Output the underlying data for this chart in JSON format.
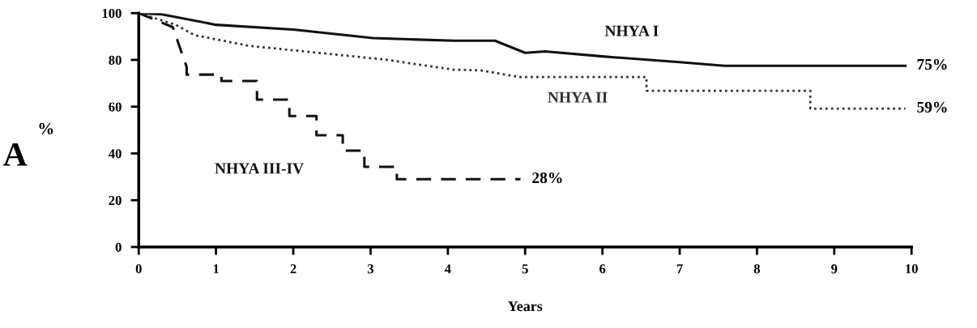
{
  "chart_data": {
    "type": "line",
    "xlabel": "Years",
    "ylabel": "%",
    "xlim": [
      0,
      10
    ],
    "ylim": [
      0,
      100
    ],
    "xticks": [
      0,
      1,
      2,
      3,
      4,
      5,
      6,
      7,
      8,
      9,
      10
    ],
    "yticks": [
      0,
      20,
      40,
      60,
      80,
      100
    ],
    "grid": false,
    "legend": false,
    "marker": "none",
    "series": [
      {
        "name": "NHYA I",
        "color": "#111111",
        "line_style": "solid",
        "x": [
          0,
          0.3,
          1.0,
          2.0,
          3.03,
          3.5,
          4.08,
          4.61,
          5.0,
          5.26,
          6.0,
          7.0,
          7.58,
          9.92
        ],
        "values": [
          100,
          99.5,
          95,
          93,
          89.3,
          88.8,
          88.2,
          88.2,
          83,
          83.6,
          81.5,
          79,
          77.5,
          77.5
        ]
      },
      {
        "name": "NHYA II",
        "color": "#333333",
        "line_style": "dotted",
        "x": [
          0,
          0.48,
          0.72,
          1.43,
          3.17,
          4.08,
          4.43,
          4.92,
          6.57,
          6.57,
          8.69,
          8.69,
          9.92
        ],
        "values": [
          100,
          95,
          90.6,
          86,
          80.2,
          75.8,
          75.5,
          72.7,
          72.7,
          66.8,
          66.8,
          59.2,
          59.2
        ]
      },
      {
        "name": "NHYA III-IV",
        "color": "#111111",
        "line_style": "dashed",
        "x": [
          0,
          0.44,
          0.62,
          0.62,
          1.07,
          1.07,
          1.53,
          1.53,
          1.95,
          1.95,
          2.3,
          2.3,
          2.64,
          2.64,
          2.92,
          2.92,
          3.34,
          3.34,
          4.94
        ],
        "values": [
          100,
          94,
          77,
          73.7,
          73.7,
          71,
          71,
          63,
          63,
          56,
          56,
          47.8,
          47.8,
          41.2,
          41.2,
          34.3,
          34.3,
          29,
          29
        ]
      }
    ],
    "annotations": [
      "75%",
      "59%",
      "28%",
      "A"
    ]
  }
}
